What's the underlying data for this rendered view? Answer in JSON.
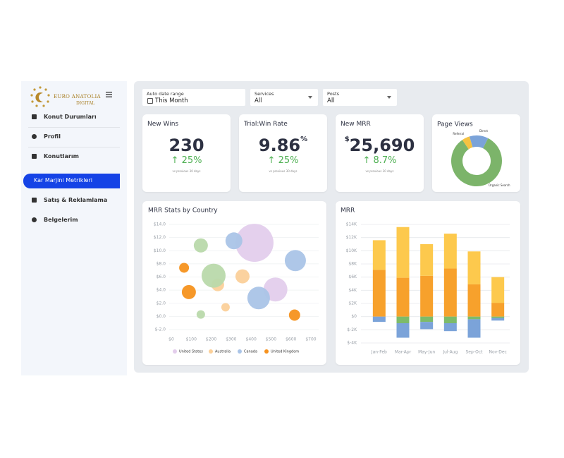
{
  "logo": {
    "line1": "EURO ANATOLIA",
    "line2": "DIGITAL"
  },
  "menu": [
    "Konut Durumları",
    "Profil",
    "Konutlarım",
    "Kar Marjini Metrikleri",
    "Satış & Reklamlama",
    "Belgelerim"
  ],
  "active_menu": 3,
  "filters": [
    {
      "label": "Auto date range",
      "value": "This Month"
    },
    {
      "label": "Services",
      "value": "All"
    },
    {
      "label": "Posts",
      "value": "All"
    }
  ],
  "kpis": [
    {
      "title": "New Wins",
      "value": "230",
      "change": "25%",
      "note": "vs previous 30 days"
    },
    {
      "title": "Trial:Win Rate",
      "value": "9.86",
      "unit": "%",
      "change": "25%",
      "note": "vs previous 30 days"
    },
    {
      "title": "New MRR",
      "prefix": "$",
      "value": "25,690",
      "change": "8.7%",
      "note": "vs previous 30 days"
    }
  ],
  "chart_data": [
    {
      "type": "pie",
      "title": "Page Views",
      "donut": true,
      "categories": [
        "Referral",
        "Direct",
        "Organic Search"
      ],
      "values": [
        5,
        12,
        83
      ],
      "colors": [
        "#f5c242",
        "#7ba3d9",
        "#7cb46a"
      ]
    },
    {
      "type": "scatter",
      "title": "MRR Stats by Country",
      "bubble": true,
      "grid": true,
      "legend": "bottom",
      "xlim": [
        0,
        700
      ],
      "xticks": [
        {
          "value": 0,
          "label": "$0"
        },
        {
          "value": 100,
          "label": "$100"
        },
        {
          "value": 200,
          "label": "$200"
        },
        {
          "value": 300,
          "label": "$300"
        },
        {
          "value": 400,
          "label": "$400"
        },
        {
          "value": 500,
          "label": "$500"
        },
        {
          "value": 600,
          "label": "$600"
        },
        {
          "value": 700,
          "label": "$700"
        }
      ],
      "ylim": [
        -2,
        14
      ],
      "yticks": [
        {
          "value": -2,
          "label": "$-2.0"
        },
        {
          "value": 0,
          "label": "$0.0"
        },
        {
          "value": 2,
          "label": "$2.0"
        },
        {
          "value": 4,
          "label": "$4.0"
        },
        {
          "value": 6,
          "label": "$6.0"
        },
        {
          "value": 8,
          "label": "$8.0"
        },
        {
          "value": 10,
          "label": "$10.0"
        },
        {
          "value": 12,
          "label": "$12.0"
        },
        {
          "value": 14,
          "label": "$14.0"
        }
      ],
      "series": [
        {
          "name": "United States",
          "color": "#e3cdec",
          "x": [
            417,
            522
          ],
          "values": [
            11.2,
            4.1
          ],
          "sizes": [
            27,
            17
          ]
        },
        {
          "name": "Australia",
          "color": "#fbd09a",
          "x": [
            233,
            357,
            272
          ],
          "values": [
            4.8,
            6.1,
            1.4
          ],
          "sizes": [
            9,
            10,
            6
          ]
        },
        {
          "name": "Canada",
          "color": "#aac4e7",
          "x": [
            314,
            622,
            438
          ],
          "values": [
            11.5,
            8.5,
            2.8
          ],
          "sizes": [
            12,
            15,
            16
          ]
        },
        {
          "name": "United Kingdom",
          "color": "#f6921e",
          "x": [
            64,
            88,
            618
          ],
          "values": [
            7.4,
            3.7,
            0.2
          ],
          "sizes": [
            7,
            10,
            8
          ]
        },
        {
          "color": "#b9d9ab",
          "x": [
            148,
            212,
            148
          ],
          "values": [
            10.8,
            6.2,
            0.3
          ],
          "sizes": [
            10,
            17,
            6
          ]
        }
      ]
    },
    {
      "type": "bar",
      "title": "MRR",
      "stacked": true,
      "grid": true,
      "categories": [
        "Jan-Feb",
        "Mar-Apr",
        "May-Jun",
        "Jul-Aug",
        "Sep-Oct",
        "Nov-Dec"
      ],
      "ylim": [
        -4000,
        14000
      ],
      "yticks": [
        {
          "value": -4000,
          "label": "$-4K"
        },
        {
          "value": -2000,
          "label": "$-2K"
        },
        {
          "value": 0,
          "label": "$0"
        },
        {
          "value": 2000,
          "label": "$2K"
        },
        {
          "value": 4000,
          "label": "$4K"
        },
        {
          "value": 6000,
          "label": "$6K"
        },
        {
          "value": 8000,
          "label": "$8K"
        },
        {
          "value": 10000,
          "label": "$10K"
        },
        {
          "value": 12000,
          "label": "$12K"
        },
        {
          "value": 14000,
          "label": "$14K"
        }
      ],
      "series": [
        {
          "color": "#f7a12c",
          "values": [
            7100,
            5900,
            6200,
            7300,
            4900,
            2100
          ]
        },
        {
          "color": "#fdc94d",
          "values": [
            4500,
            7700,
            4800,
            5300,
            5000,
            3900
          ]
        },
        {
          "color": "#7dbb6a",
          "values": [
            0,
            -1000,
            -800,
            -1000,
            -400,
            -200
          ]
        },
        {
          "color": "#7ba3d9",
          "values": [
            -800,
            -2200,
            -1100,
            -1200,
            -2800,
            -400
          ]
        }
      ]
    }
  ]
}
